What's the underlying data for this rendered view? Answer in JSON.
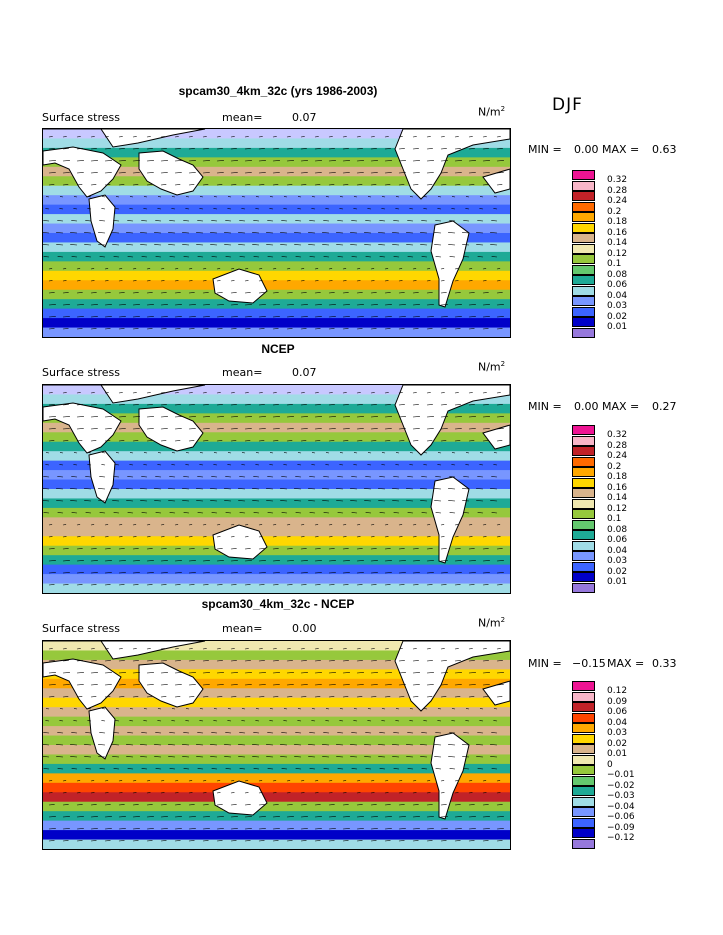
{
  "season": "DJF",
  "panels": [
    {
      "id": "model",
      "title": "spcam30_4km_32c (yrs 1986-2003)",
      "field": "Surface stress",
      "mean_label": "mean=",
      "mean_value": "0.07",
      "unit_base": "N/m",
      "unit_exp": "2",
      "min_label": "MIN =",
      "min_value": "0.00",
      "max_label": "MAX =",
      "max_value": "0.63",
      "legend": [
        {
          "label": "0.32",
          "color": "#ee1493"
        },
        {
          "label": "0.28",
          "color": "#f8b6c8"
        },
        {
          "label": "0.24",
          "color": "#c12228"
        },
        {
          "label": "0.2",
          "color": "#ff6a00"
        },
        {
          "label": "0.18",
          "color": "#ffa800"
        },
        {
          "label": "0.16",
          "color": "#ffd700"
        },
        {
          "label": "0.14",
          "color": "#d9b48c"
        },
        {
          "label": "0.12",
          "color": "#f0e8b0"
        },
        {
          "label": "0.1",
          "color": "#96c83c"
        },
        {
          "label": "0.08",
          "color": "#64c86e"
        },
        {
          "label": "0.06",
          "color": "#1eaa96"
        },
        {
          "label": "0.04",
          "color": "#a0dce6"
        },
        {
          "label": "0.03",
          "color": "#7896ff"
        },
        {
          "label": "0.02",
          "color": "#3c64ff"
        },
        {
          "label": "0.01",
          "color": "#0000c8"
        },
        {
          "label": "",
          "color": "#9678dc"
        }
      ]
    },
    {
      "id": "ncep",
      "title": "NCEP",
      "field": "Surface stress",
      "mean_label": "mean=",
      "mean_value": "0.07",
      "unit_base": "N/m",
      "unit_exp": "2",
      "min_label": "MIN =",
      "min_value": "0.00",
      "max_label": "MAX =",
      "max_value": "0.27",
      "legend": [
        {
          "label": "0.32",
          "color": "#ee1493"
        },
        {
          "label": "0.28",
          "color": "#f8b6c8"
        },
        {
          "label": "0.24",
          "color": "#c12228"
        },
        {
          "label": "0.2",
          "color": "#ff6a00"
        },
        {
          "label": "0.18",
          "color": "#ffa800"
        },
        {
          "label": "0.16",
          "color": "#ffd700"
        },
        {
          "label": "0.14",
          "color": "#d9b48c"
        },
        {
          "label": "0.12",
          "color": "#f0e8b0"
        },
        {
          "label": "0.1",
          "color": "#96c83c"
        },
        {
          "label": "0.08",
          "color": "#64c86e"
        },
        {
          "label": "0.06",
          "color": "#1eaa96"
        },
        {
          "label": "0.04",
          "color": "#a0dce6"
        },
        {
          "label": "0.03",
          "color": "#7896ff"
        },
        {
          "label": "0.02",
          "color": "#3c64ff"
        },
        {
          "label": "0.01",
          "color": "#0000c8"
        },
        {
          "label": "",
          "color": "#9678dc"
        }
      ]
    },
    {
      "id": "diff",
      "title": "spcam30_4km_32c - NCEP",
      "field": "Surface stress",
      "mean_label": "mean=",
      "mean_value": "0.00",
      "unit_base": "N/m",
      "unit_exp": "2",
      "min_label": "MIN =",
      "min_value": "−0.15",
      "max_label": "MAX =",
      "max_value": "0.33",
      "legend": [
        {
          "label": "0.12",
          "color": "#ee1493"
        },
        {
          "label": "0.09",
          "color": "#f8b6c8"
        },
        {
          "label": "0.06",
          "color": "#c12228"
        },
        {
          "label": "0.04",
          "color": "#ff4500"
        },
        {
          "label": "0.03",
          "color": "#ffa800"
        },
        {
          "label": "0.02",
          "color": "#ffd700"
        },
        {
          "label": "0.01",
          "color": "#d9b48c"
        },
        {
          "label": "0",
          "color": "#f0e8b0"
        },
        {
          "label": "−0.01",
          "color": "#96c83c"
        },
        {
          "label": "−0.02",
          "color": "#64c86e"
        },
        {
          "label": "−0.03",
          "color": "#1eaa96"
        },
        {
          "label": "−0.04",
          "color": "#a0dce6"
        },
        {
          "label": "−0.06",
          "color": "#7896ff"
        },
        {
          "label": "−0.09",
          "color": "#3c64ff"
        },
        {
          "label": "−0.12",
          "color": "#0000c8"
        },
        {
          "label": "",
          "color": "#9678dc"
        }
      ]
    }
  ]
}
